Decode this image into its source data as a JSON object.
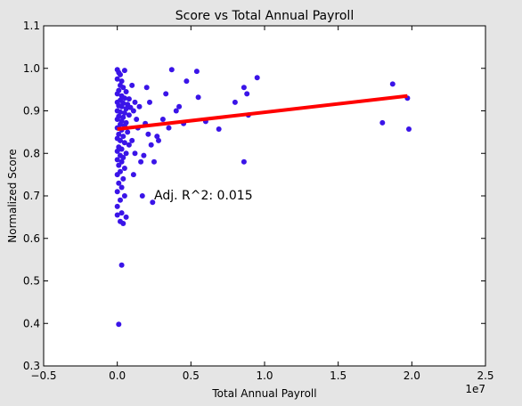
{
  "chart_data": {
    "type": "scatter",
    "title": "Score vs Total Annual Payroll",
    "xlabel": "Total Annual Payroll",
    "ylabel": "Normalized Score",
    "x_offset_label": "1e7",
    "xlim": [
      -0.5,
      2.5
    ],
    "ylim": [
      0.3,
      1.1
    ],
    "x_ticks": [
      -0.5,
      0.0,
      0.5,
      1.0,
      1.5,
      2.0,
      2.5
    ],
    "x_tick_labels": [
      "−0.5",
      "0.0",
      "0.5",
      "1.0",
      "1.5",
      "2.0",
      "2.5"
    ],
    "y_ticks": [
      0.3,
      0.4,
      0.5,
      0.6,
      0.7,
      0.8,
      0.9,
      1.0,
      1.1
    ],
    "y_tick_labels": [
      "0.3",
      "0.4",
      "0.5",
      "0.6",
      "0.7",
      "0.8",
      "0.9",
      "1.0",
      "1.1"
    ],
    "grid": false,
    "annotation": "Adj. R^2: 0.015",
    "point_color": "#3a14e8",
    "line_color": "#ff0000",
    "fit_line": {
      "x": [
        0.0,
        1.97
      ],
      "y": [
        0.857,
        0.935
      ]
    },
    "points": [
      [
        0.0,
        0.997
      ],
      [
        0.01,
        0.99
      ],
      [
        0.02,
        0.985
      ],
      [
        0.0,
        0.975
      ],
      [
        0.03,
        0.97
      ],
      [
        0.05,
        0.995
      ],
      [
        0.02,
        0.96
      ],
      [
        0.04,
        0.955
      ],
      [
        0.01,
        0.948
      ],
      [
        0.06,
        0.945
      ],
      [
        0.0,
        0.94
      ],
      [
        0.03,
        0.935
      ],
      [
        0.05,
        0.93
      ],
      [
        0.08,
        0.928
      ],
      [
        0.02,
        0.925
      ],
      [
        0.0,
        0.92
      ],
      [
        0.04,
        0.918
      ],
      [
        0.07,
        0.915
      ],
      [
        0.01,
        0.912
      ],
      [
        0.03,
        0.91
      ],
      [
        0.06,
        0.905
      ],
      [
        0.09,
        0.908
      ],
      [
        0.0,
        0.9
      ],
      [
        0.02,
        0.897
      ],
      [
        0.05,
        0.895
      ],
      [
        0.08,
        0.89
      ],
      [
        0.01,
        0.887
      ],
      [
        0.04,
        0.885
      ],
      [
        0.0,
        0.88
      ],
      [
        0.03,
        0.876
      ],
      [
        0.06,
        0.872
      ],
      [
        0.02,
        0.868
      ],
      [
        0.05,
        0.865
      ],
      [
        0.0,
        0.86
      ],
      [
        0.03,
        0.855
      ],
      [
        0.07,
        0.85
      ],
      [
        0.01,
        0.845
      ],
      [
        0.04,
        0.84
      ],
      [
        0.0,
        0.835
      ],
      [
        0.02,
        0.83
      ],
      [
        0.05,
        0.825
      ],
      [
        0.08,
        0.82
      ],
      [
        0.01,
        0.815
      ],
      [
        0.03,
        0.81
      ],
      [
        0.0,
        0.805
      ],
      [
        0.06,
        0.8
      ],
      [
        0.02,
        0.795
      ],
      [
        0.04,
        0.79
      ],
      [
        0.0,
        0.785
      ],
      [
        0.03,
        0.78
      ],
      [
        0.01,
        0.772
      ],
      [
        0.05,
        0.765
      ],
      [
        0.02,
        0.757
      ],
      [
        0.0,
        0.75
      ],
      [
        0.04,
        0.74
      ],
      [
        0.01,
        0.73
      ],
      [
        0.03,
        0.72
      ],
      [
        0.0,
        0.71
      ],
      [
        0.05,
        0.7
      ],
      [
        0.02,
        0.69
      ],
      [
        0.0,
        0.675
      ],
      [
        0.03,
        0.66
      ],
      [
        0.0,
        0.655
      ],
      [
        0.06,
        0.65
      ],
      [
        0.02,
        0.64
      ],
      [
        0.04,
        0.635
      ],
      [
        0.03,
        0.537
      ],
      [
        0.01,
        0.398
      ],
      [
        0.1,
        0.96
      ],
      [
        0.12,
        0.92
      ],
      [
        0.11,
        0.9
      ],
      [
        0.13,
        0.88
      ],
      [
        0.15,
        0.91
      ],
      [
        0.14,
        0.86
      ],
      [
        0.1,
        0.83
      ],
      [
        0.12,
        0.8
      ],
      [
        0.16,
        0.78
      ],
      [
        0.11,
        0.75
      ],
      [
        0.18,
        0.795
      ],
      [
        0.2,
        0.955
      ],
      [
        0.22,
        0.92
      ],
      [
        0.19,
        0.87
      ],
      [
        0.21,
        0.845
      ],
      [
        0.23,
        0.82
      ],
      [
        0.25,
        0.78
      ],
      [
        0.24,
        0.685
      ],
      [
        0.17,
        0.7
      ],
      [
        0.27,
        0.84
      ],
      [
        0.28,
        0.83
      ],
      [
        0.31,
        0.88
      ],
      [
        0.33,
        0.94
      ],
      [
        0.35,
        0.86
      ],
      [
        0.37,
        0.997
      ],
      [
        0.4,
        0.9
      ],
      [
        0.42,
        0.91
      ],
      [
        0.45,
        0.87
      ],
      [
        0.47,
        0.97
      ],
      [
        0.54,
        0.993
      ],
      [
        0.55,
        0.932
      ],
      [
        0.6,
        0.875
      ],
      [
        0.69,
        0.857
      ],
      [
        0.8,
        0.92
      ],
      [
        0.86,
        0.955
      ],
      [
        0.86,
        0.78
      ],
      [
        0.88,
        0.94
      ],
      [
        0.89,
        0.89
      ],
      [
        0.95,
        0.978
      ],
      [
        1.87,
        0.963
      ],
      [
        1.8,
        0.872
      ],
      [
        1.97,
        0.93
      ],
      [
        1.98,
        0.857
      ]
    ]
  }
}
